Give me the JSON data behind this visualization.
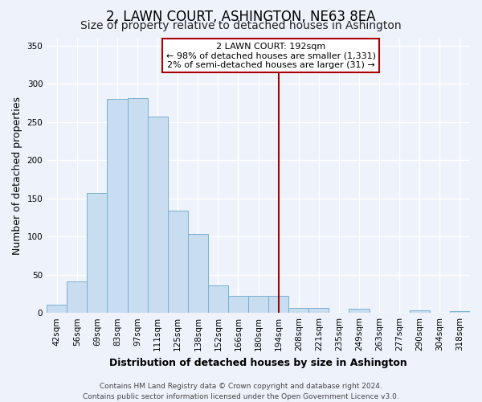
{
  "title": "2, LAWN COURT, ASHINGTON, NE63 8EA",
  "subtitle": "Size of property relative to detached houses in Ashington",
  "xlabel": "Distribution of detached houses by size in Ashington",
  "ylabel": "Number of detached properties",
  "bar_labels": [
    "42sqm",
    "56sqm",
    "69sqm",
    "83sqm",
    "97sqm",
    "111sqm",
    "125sqm",
    "138sqm",
    "152sqm",
    "166sqm",
    "180sqm",
    "194sqm",
    "208sqm",
    "221sqm",
    "235sqm",
    "249sqm",
    "263sqm",
    "277sqm",
    "290sqm",
    "304sqm",
    "318sqm"
  ],
  "bar_values": [
    11,
    41,
    157,
    280,
    282,
    257,
    134,
    103,
    36,
    22,
    22,
    22,
    7,
    6,
    0,
    5,
    0,
    0,
    3,
    0,
    2
  ],
  "bar_color": "#c8ddf0",
  "bar_edge_color": "#7ab0d0",
  "ylim": [
    0,
    360
  ],
  "yticks": [
    0,
    50,
    100,
    150,
    200,
    250,
    300,
    350
  ],
  "vline_x_index": 11,
  "vline_color": "#aa0000",
  "annotation_title": "2 LAWN COURT: 192sqm",
  "annotation_line1": "← 98% of detached houses are smaller (1,331)",
  "annotation_line2": "2% of semi-detached houses are larger (31) →",
  "footer_line1": "Contains HM Land Registry data © Crown copyright and database right 2024.",
  "footer_line2": "Contains public sector information licensed under the Open Government Licence v3.0.",
  "background_color": "#eef2fb",
  "grid_color": "#ffffff",
  "title_fontsize": 12,
  "subtitle_fontsize": 10,
  "axis_label_fontsize": 9,
  "tick_fontsize": 7.5,
  "footer_fontsize": 6.5
}
